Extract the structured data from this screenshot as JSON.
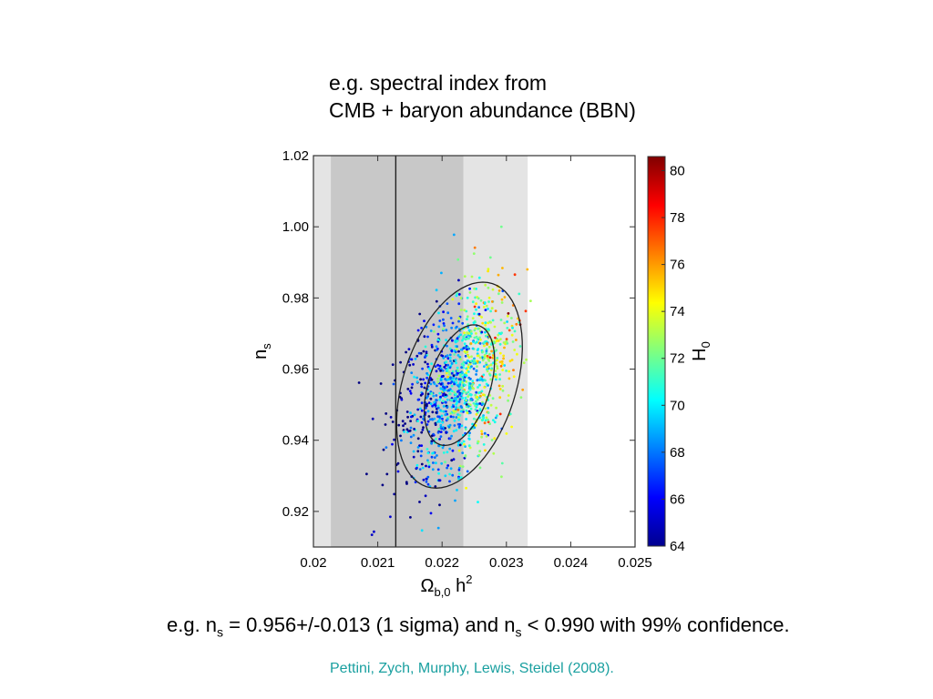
{
  "heading": {
    "line1": "e.g. spectral index from",
    "line2": "CMB + baryon abundance (BBN)"
  },
  "caption": {
    "prefix": "e.g. n",
    "sub1": "s",
    "mid": " = 0.956+/-0.013 (1 sigma) and n",
    "sub2": "s",
    "suffix": " < 0.990 with 99% confidence."
  },
  "citation": "Pettini, Zych, Murphy, Lewis, Steidel  (2008).",
  "chart_data": {
    "type": "scatter",
    "xlim": [
      0.02,
      0.025
    ],
    "ylim": [
      0.91,
      1.02
    ],
    "x_ticks": [
      "0.02",
      "0.021",
      "0.022",
      "0.023",
      "0.024",
      "0.025"
    ],
    "y_ticks": [
      "0.92",
      "0.94",
      "0.96",
      "0.98",
      "1.00",
      "1.02"
    ],
    "xlabel": {
      "base": "Ω",
      "sub": "b,0",
      "rest": " h",
      "sup": "2"
    },
    "ylabel": {
      "base": "n",
      "sub": "s"
    },
    "colorbar": {
      "label_base": "H",
      "label_sub": "0",
      "range": [
        64,
        80.6
      ],
      "ticks": [
        "64",
        "66",
        "68",
        "70",
        "72",
        "74",
        "76",
        "78",
        "80"
      ]
    },
    "bands": [
      {
        "range": [
          0.02027,
          0.02333
        ],
        "color": "#e4e4e4"
      },
      {
        "range": [
          0.02027,
          0.02233
        ],
        "color": "#c8c8c8"
      }
    ],
    "vertical_line": 0.02128,
    "contours": {
      "center": [
        0.02227,
        0.9555
      ],
      "semi_major": [
        0.0176,
        0.03
      ],
      "semi_minor": [
        0.00865,
        0.0158
      ],
      "angle_deg": 72
    },
    "points": {
      "count": 1200,
      "center": [
        0.02227,
        0.9555
      ],
      "note": "sampled points coloured by H0; H0 increases with Omega_b h^2"
    },
    "grid": false
  }
}
